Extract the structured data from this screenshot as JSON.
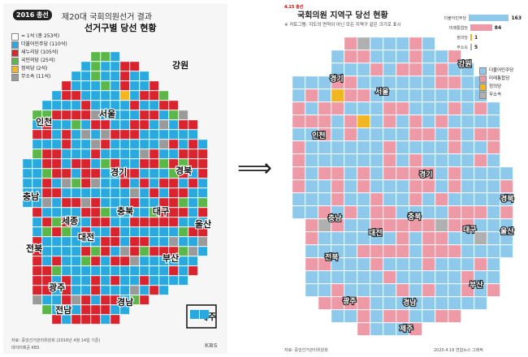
{
  "left": {
    "logo": "2016 총선",
    "title": "제20대 국회의원선거 결과",
    "subtitle": "선거구별 당선 현황",
    "legend": [
      {
        "label": "= 1석 (총 253석)",
        "color": "#ffffff"
      },
      {
        "label": "더불어민주당 (110석)",
        "color": "#2aa9e0"
      },
      {
        "label": "새누리당 (105석)",
        "color": "#d9232d"
      },
      {
        "label": "국민의당 (25석)",
        "color": "#5bb74a"
      },
      {
        "label": "정의당 (2석)",
        "color": "#f2b622"
      },
      {
        "label": "무소속 (11석)",
        "color": "#9a9a9a"
      }
    ],
    "regions": [
      {
        "name": "강원",
        "lx": 208,
        "ly": 80
      },
      {
        "name": "서울",
        "lx": 118,
        "ly": 140
      },
      {
        "name": "인천",
        "lx": 40,
        "ly": 150
      },
      {
        "name": "경기",
        "lx": 132,
        "ly": 212
      },
      {
        "name": "경북",
        "lx": 212,
        "ly": 210
      },
      {
        "name": "충남",
        "lx": 24,
        "ly": 242
      },
      {
        "name": "충북",
        "lx": 140,
        "ly": 260
      },
      {
        "name": "대구",
        "lx": 184,
        "ly": 260
      },
      {
        "name": "세종",
        "lx": 72,
        "ly": 272
      },
      {
        "name": "울산",
        "lx": 236,
        "ly": 276
      },
      {
        "name": "대전",
        "lx": 92,
        "ly": 292
      },
      {
        "name": "전북",
        "lx": 28,
        "ly": 306
      },
      {
        "name": "부산",
        "lx": 196,
        "ly": 318
      },
      {
        "name": "광주",
        "lx": 56,
        "ly": 354
      },
      {
        "name": "경남",
        "lx": 140,
        "ly": 372
      },
      {
        "name": "전남",
        "lx": 64,
        "ly": 382
      },
      {
        "name": "제주",
        "lx": 242,
        "ly": 390
      }
    ],
    "source": "자료: 중앙선거관리위원회 (2016년 4월 14일 기준)",
    "credit": "데이터제공 KBS",
    "brand": "KBS"
  },
  "right": {
    "badge": "4.15 총선",
    "title": "국회의원 지역구 당선 현황",
    "note": "※ 카토그램: 지도의 면적이 아닌 모든 지역구 같은 크기로 표시",
    "seats": [
      {
        "party": "더불어민주당",
        "seats": 163,
        "color": "#8ec9ec"
      },
      {
        "party": "미래통합당",
        "seats": 84,
        "color": "#ee9aa6"
      },
      {
        "party": "정의당",
        "seats": 1,
        "color": "#f2b622"
      },
      {
        "party": "무소속",
        "seats": 5,
        "color": "#b0b0b0"
      }
    ],
    "legend": [
      {
        "label": "더불어민주당",
        "color": "#8ec9ec"
      },
      {
        "label": "미래통합당",
        "color": "#ee9aa6"
      },
      {
        "label": "정의당",
        "color": "#f2b622"
      },
      {
        "label": "무소속",
        "color": "#b0b0b0"
      }
    ],
    "regions": [
      {
        "name": "강원",
        "lx": 220,
        "ly": 78
      },
      {
        "name": "경기",
        "lx": 62,
        "ly": 96
      },
      {
        "name": "서울",
        "lx": 118,
        "ly": 112
      },
      {
        "name": "인천",
        "lx": 40,
        "ly": 166
      },
      {
        "name": "경기",
        "lx": 172,
        "ly": 214
      },
      {
        "name": "경북",
        "lx": 272,
        "ly": 244
      },
      {
        "name": "충남",
        "lx": 60,
        "ly": 268
      },
      {
        "name": "충북",
        "lx": 158,
        "ly": 266
      },
      {
        "name": "대전",
        "lx": 110,
        "ly": 286
      },
      {
        "name": "대구",
        "lx": 226,
        "ly": 282
      },
      {
        "name": "울산",
        "lx": 272,
        "ly": 284
      },
      {
        "name": "전북",
        "lx": 56,
        "ly": 316
      },
      {
        "name": "부산",
        "lx": 234,
        "ly": 350
      },
      {
        "name": "광주",
        "lx": 78,
        "ly": 370
      },
      {
        "name": "경남",
        "lx": 152,
        "ly": 372
      },
      {
        "name": "제주",
        "lx": 148,
        "ly": 404
      }
    ],
    "source": "자료: 중앙선거관리위원회",
    "credit": "2020.4.16 연합뉴스 그래픽"
  }
}
